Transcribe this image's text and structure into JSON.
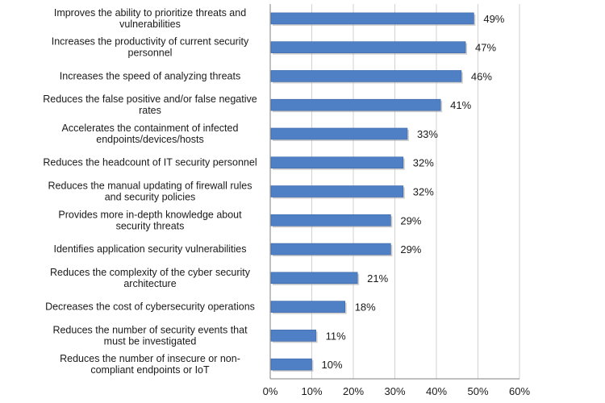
{
  "chart_data": {
    "type": "bar",
    "orientation": "horizontal",
    "categories": [
      [
        "Improves the ability to prioritize threats and",
        "vulnerabilities"
      ],
      [
        "Increases the productivity of current security",
        "personnel"
      ],
      [
        "Increases the speed of analyzing threats"
      ],
      [
        "Reduces the false positive and/or false negative",
        "rates"
      ],
      [
        "Accelerates the containment of infected",
        "endpoints/devices/hosts"
      ],
      [
        "Reduces the headcount of IT security personnel"
      ],
      [
        "Reduces the manual updating of firewall rules",
        "and security policies"
      ],
      [
        "Provides more in-depth knowledge about",
        "security threats"
      ],
      [
        "Identifies application security vulnerabilities"
      ],
      [
        "Reduces the complexity of the cyber security",
        "architecture"
      ],
      [
        "Decreases the cost of cybersecurity operations"
      ],
      [
        "Reduces the number of security events that",
        "must be investigated"
      ],
      [
        "Reduces the number of insecure or non-",
        "compliant endpoints or IoT"
      ]
    ],
    "values": [
      49,
      47,
      46,
      41,
      33,
      32,
      32,
      29,
      29,
      21,
      18,
      11,
      10
    ],
    "value_labels": [
      "49%",
      "47%",
      "46%",
      "41%",
      "33%",
      "32%",
      "32%",
      "29%",
      "29%",
      "21%",
      "18%",
      "11%",
      "10%"
    ],
    "xlim": [
      0,
      60
    ],
    "x_ticks": [
      0,
      10,
      20,
      30,
      40,
      50,
      60
    ],
    "x_tick_labels": [
      "0%",
      "10%",
      "20%",
      "30%",
      "40%",
      "50%",
      "60%"
    ],
    "title": "",
    "xlabel": "",
    "ylabel": "",
    "grid": "vertical",
    "legend": "none",
    "colors": {
      "bar": "#4f7fc4",
      "bar_edge": "#3b66a8",
      "bar_shadow": "#a8a8a8",
      "grid": "#d2d2d2",
      "axis": "#808080"
    }
  }
}
